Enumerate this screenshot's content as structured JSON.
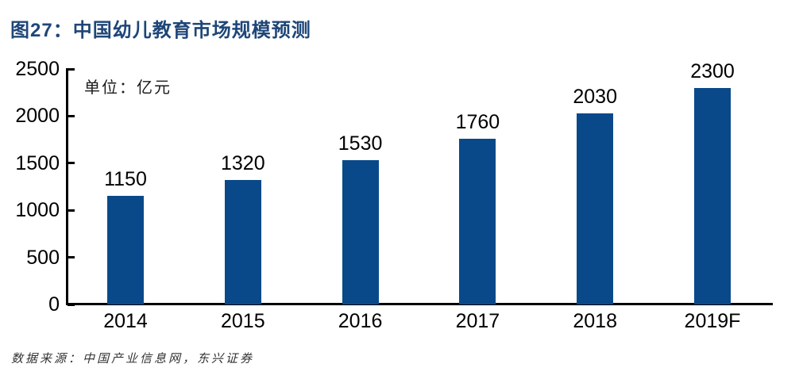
{
  "chart_data": {
    "type": "bar",
    "title": "图27：中国幼儿教育市场规模预测",
    "unit_label": "单位：亿元",
    "categories": [
      "2014",
      "2015",
      "2016",
      "2017",
      "2018",
      "2019F"
    ],
    "values": [
      1150,
      1320,
      1530,
      1760,
      2030,
      2300
    ],
    "data_labels": [
      1150,
      1320,
      1530,
      1760,
      2030,
      2300
    ],
    "xlabel": "",
    "ylabel": "",
    "ylim": [
      0,
      2500
    ],
    "yticks": [
      0,
      500,
      1000,
      1500,
      2000,
      2500
    ],
    "grid": false,
    "legend_position": "none"
  },
  "footer": {
    "source": "数据来源：中国产业信息网，东兴证券"
  },
  "colors": {
    "bar": "#09498A",
    "title": "#1E4678",
    "axis": "#000000",
    "label": "#000000",
    "source": "#333333"
  }
}
